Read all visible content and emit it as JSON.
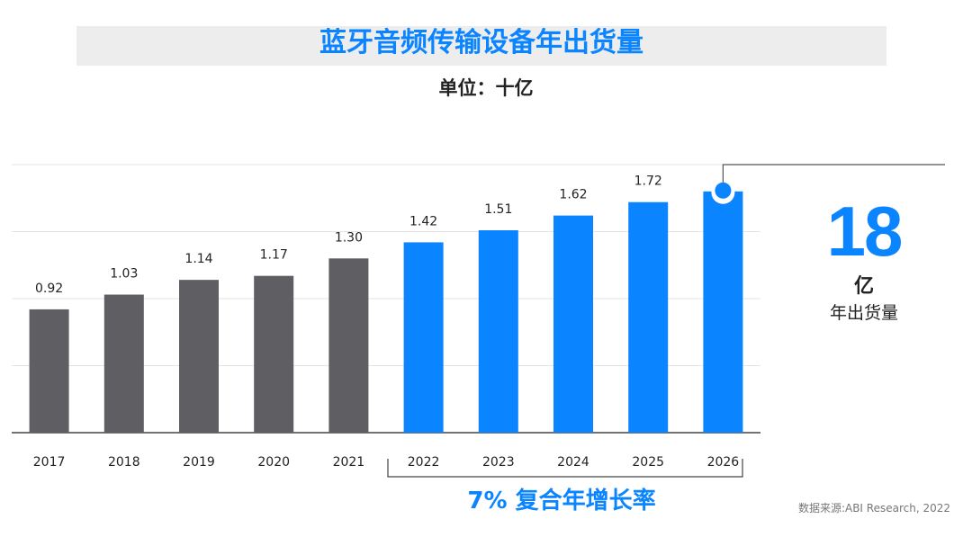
{
  "chart_data": {
    "type": "bar",
    "title": "蓝牙音频传输设备年出货量",
    "subtitle": "单位：十亿",
    "categories": [
      "2017",
      "2018",
      "2019",
      "2020",
      "2021",
      "2022",
      "2023",
      "2024",
      "2025",
      "2026"
    ],
    "values": [
      0.92,
      1.03,
      1.14,
      1.17,
      1.3,
      1.42,
      1.51,
      1.62,
      1.72,
      1.8
    ],
    "labels": [
      "0.92",
      "1.03",
      "1.14",
      "1.17",
      "1.30",
      "1.42",
      "1.51",
      "1.62",
      "1.72",
      ""
    ],
    "forecast_from_index": 5,
    "ylim": [
      0,
      2.0
    ],
    "gridlines": [
      0.5,
      1.0,
      1.5,
      2.0
    ],
    "grid": true,
    "colors": {
      "actual": "#5f5f63",
      "forecast": "#0a84ff"
    },
    "callout": {
      "value": "18",
      "unit": "亿",
      "label": "年出货量"
    },
    "annotation": "7% 复合年增长率",
    "source": "数据来源:ABI Research, 2022"
  }
}
